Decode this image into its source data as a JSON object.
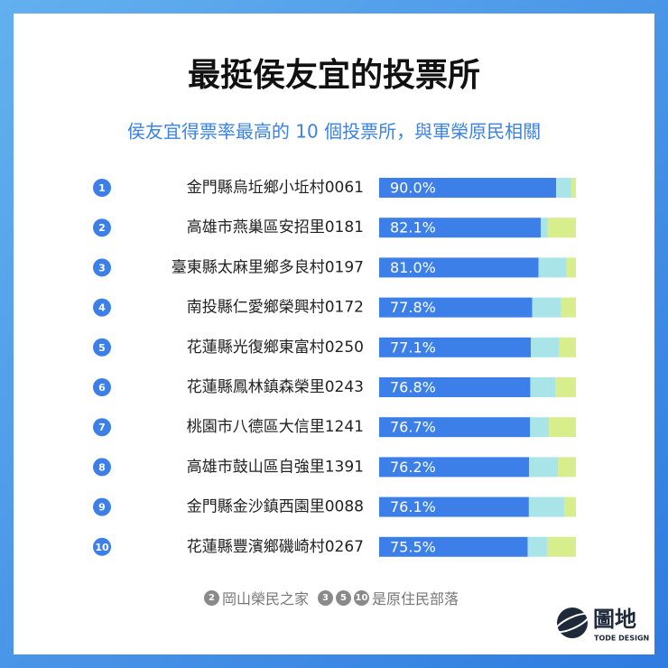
{
  "chart_data": {
    "type": "stacked_bar_horizontal",
    "title": "最挺侯友宜的投票所",
    "subtitle": "侯友宜得票率最高的 10 個投票所，與軍榮原民相關",
    "ranks": [
      "1",
      "2",
      "3",
      "4",
      "5",
      "6",
      "7",
      "8",
      "9",
      "10"
    ],
    "categories": [
      "金門縣烏坵鄉小坵村0061",
      "高雄市燕巢區安招里0181",
      "臺東縣太麻里鄉多良村0197",
      "南投縣仁愛鄉榮興村0172",
      "花蓮縣光復鄉東富村0250",
      "花蓮縣鳳林鎮森榮里0243",
      "桃園市八德區大信里1241",
      "高雄市鼓山區自強里1391",
      "金門縣金沙鎮西園里0088",
      "花蓮縣豐濱鄉磯崎村0267"
    ],
    "xlim": [
      0,
      100
    ],
    "series": [
      {
        "color": "#3d7fe8",
        "values": [
          90.0,
          82.1,
          81.0,
          77.8,
          77.1,
          76.8,
          76.7,
          76.2,
          76.1,
          75.5
        ],
        "value_labels": [
          "90.0%",
          "82.1%",
          "81.0%",
          "77.8%",
          "77.1%",
          "76.8%",
          "76.7%",
          "76.2%",
          "76.1%",
          "75.5%"
        ]
      },
      {
        "color": "#a8e4e8",
        "values": [
          7.5,
          3.5,
          14.2,
          14.7,
          14.2,
          12.8,
          9.6,
          14.7,
          17.9,
          10.1
        ]
      },
      {
        "color": "#d8ee8c",
        "values": [
          2.5,
          14.4,
          4.8,
          7.5,
          8.7,
          10.4,
          13.7,
          9.1,
          6.0,
          14.4
        ]
      }
    ],
    "footnote": [
      {
        "badges": [
          "2"
        ],
        "text": "岡山榮民之家"
      },
      {
        "badges": [
          "3",
          "5",
          "10"
        ],
        "text": "是原住民部落"
      }
    ],
    "logo": {
      "name": "圖地",
      "subtitle": "TODE DESIGN"
    }
  }
}
